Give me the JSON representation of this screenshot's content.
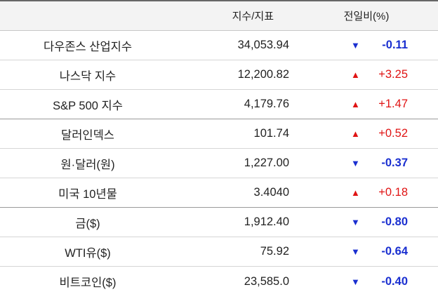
{
  "header": {
    "col_index": "지수/지표",
    "col_change": "전일비(%)"
  },
  "colors": {
    "up": "#e01414",
    "down": "#1a2fd0"
  },
  "rows": [
    {
      "name": "다우존스 산업지수",
      "value": "34,053.94",
      "direction": "down",
      "arrow": "▼",
      "change": "-0.11"
    },
    {
      "name": "나스닥 지수",
      "value": "12,200.82",
      "direction": "up",
      "arrow": "▲",
      "change": "+3.25"
    },
    {
      "name": "S&P 500 지수",
      "value": "4,179.76",
      "direction": "up",
      "arrow": "▲",
      "change": "+1.47"
    },
    {
      "name": "달러인덱스",
      "value": "101.74",
      "direction": "up",
      "arrow": "▲",
      "change": "+0.52"
    },
    {
      "name": "원·달러(원)",
      "value": "1,227.00",
      "direction": "down",
      "arrow": "▼",
      "change": "-0.37"
    },
    {
      "name": "미국 10년물",
      "value": "3.4040",
      "direction": "up",
      "arrow": "▲",
      "change": "+0.18"
    },
    {
      "name": "금($)",
      "value": "1,912.40",
      "direction": "down",
      "arrow": "▼",
      "change": "-0.80"
    },
    {
      "name": "WTI유($)",
      "value": "75.92",
      "direction": "down",
      "arrow": "▼",
      "change": "-0.64"
    },
    {
      "name": "비트코인($)",
      "value": "23,585.0",
      "direction": "down",
      "arrow": "▼",
      "change": "-0.40"
    }
  ]
}
